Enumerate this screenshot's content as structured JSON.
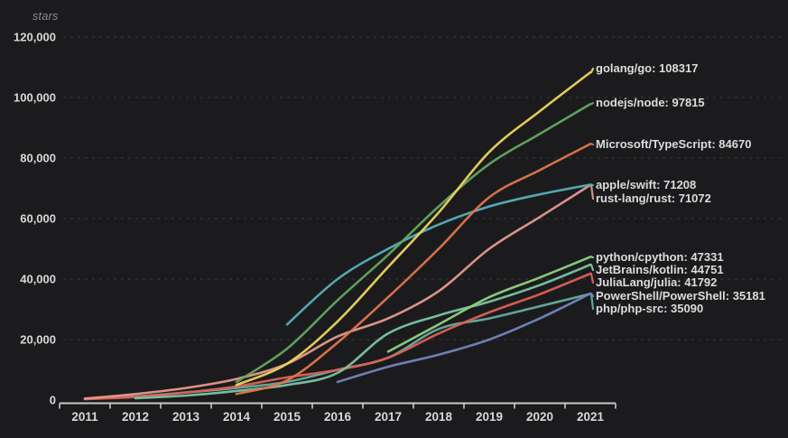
{
  "theme": {
    "background": "#1b1b1d",
    "text_color": "#d8d8d8",
    "muted_text": "#8d8d8d",
    "grid_color": "#3a3a3a",
    "axis_color": "#c9c9c9",
    "annotation_text_color": "#dcdcdc"
  },
  "chart_data": {
    "type": "line",
    "title": "",
    "ylabel": "stars",
    "xlabel": "",
    "x": [
      2011,
      2012,
      2013,
      2014,
      2015,
      2016,
      2017,
      2018,
      2019,
      2020,
      2021
    ],
    "x_tick_labels": [
      "2011",
      "2012",
      "2013",
      "2014",
      "2015",
      "2016",
      "2017",
      "2018",
      "2019",
      "2020",
      "2021"
    ],
    "y_ticks": [
      0,
      20000,
      40000,
      60000,
      80000,
      100000,
      120000
    ],
    "y_tick_labels": [
      "0",
      "20,000",
      "40,000",
      "60,000",
      "80,000",
      "100,000",
      "120,000"
    ],
    "ylim": [
      0,
      120000
    ],
    "grid": "horizontal-dashed",
    "legend_position": "right-annotations",
    "series": [
      {
        "name": "php/php-src",
        "label": "php/php-src: 35090",
        "final_stars": 35090,
        "color": "#67aca0",
        "label_y": 342,
        "values": [
          400,
          1200,
          2500,
          4000,
          6000,
          10000,
          14000,
          23500,
          27000,
          31000,
          35090
        ]
      },
      {
        "name": "PowerShell/PowerShell",
        "label": "PowerShell/PowerShell: 35181",
        "final_stars": 35181,
        "color": "#7284bd",
        "label_y": 328,
        "values": [
          null,
          null,
          null,
          null,
          null,
          6000,
          11000,
          15000,
          20000,
          27000,
          35181
        ]
      },
      {
        "name": "JuliaLang/julia",
        "label": "JuliaLang/julia: 41792",
        "final_stars": 41792,
        "color": "#dc6156",
        "label_y": 313,
        "values": [
          300,
          1000,
          2500,
          4500,
          7500,
          10000,
          14000,
          22000,
          29000,
          35000,
          41792
        ]
      },
      {
        "name": "JetBrains/kotlin",
        "label": "JetBrains/kotlin: 44751",
        "final_stars": 44751,
        "color": "#7cc5a2",
        "label_y": 299,
        "values": [
          null,
          600,
          1500,
          3000,
          5000,
          9000,
          22000,
          28000,
          32500,
          38000,
          44751
        ]
      },
      {
        "name": "python/cpython",
        "label": "python/cpython: 47331",
        "final_stars": 47331,
        "color": "#8fd080",
        "label_y": 285,
        "values": [
          null,
          null,
          null,
          null,
          null,
          null,
          16000,
          25000,
          34000,
          40500,
          47331
        ]
      },
      {
        "name": "rust-lang/rust",
        "label": "rust-lang/rust: 71072",
        "final_stars": 71072,
        "color": "#e69a8d",
        "label_y": 220,
        "values": [
          500,
          2000,
          4000,
          7000,
          12000,
          21000,
          27000,
          36000,
          50000,
          60500,
          71072
        ]
      },
      {
        "name": "apple/swift",
        "label": "apple/swift: 71208",
        "final_stars": 71208,
        "color": "#57aebb",
        "label_y": 205,
        "values": [
          null,
          null,
          null,
          null,
          25000,
          40000,
          50000,
          58000,
          64000,
          68000,
          71208
        ]
      },
      {
        "name": "Microsoft/TypeScript",
        "label": "Microsoft/TypeScript: 84670",
        "final_stars": 84670,
        "color": "#e0754b",
        "label_y": 160,
        "values": [
          null,
          null,
          null,
          2000,
          6500,
          19000,
          34000,
          50000,
          67000,
          76000,
          84670
        ]
      },
      {
        "name": "nodejs/node",
        "label": "nodejs/node: 97815",
        "final_stars": 97815,
        "color": "#63a55f",
        "label_y": 114,
        "values": [
          null,
          null,
          null,
          6000,
          17000,
          33000,
          48000,
          64000,
          78000,
          88000,
          97815
        ]
      },
      {
        "name": "golang/go",
        "label": "golang/go: 108317",
        "final_stars": 108317,
        "color": "#ecd45e",
        "label_y": 76,
        "values": [
          null,
          null,
          null,
          5000,
          12000,
          26000,
          44000,
          62000,
          82000,
          95500,
          108317
        ]
      }
    ]
  }
}
